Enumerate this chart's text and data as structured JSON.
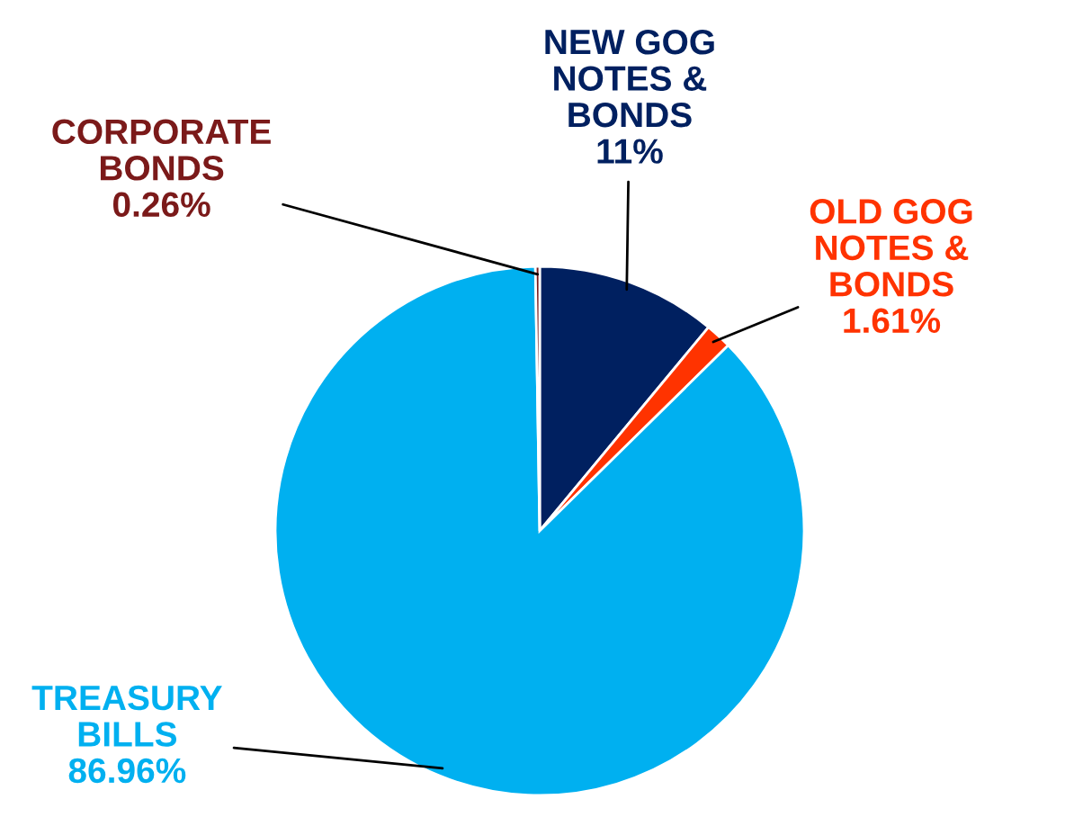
{
  "chart_data": {
    "type": "pie",
    "categories": [
      "NEW GOG\nNOTES &\nBONDS",
      "OLD GOG\nNOTES &\nBONDS",
      "TREASURY\nBILLS",
      "CORPORATE\nBONDS"
    ],
    "values": [
      11,
      1.61,
      86.96,
      0.26
    ],
    "value_labels": [
      "11%",
      "1.61%",
      "86.96%",
      "0.26%"
    ],
    "colors": [
      "#002060",
      "#ff3300",
      "#00b0f0",
      "#7b1a1a"
    ]
  }
}
